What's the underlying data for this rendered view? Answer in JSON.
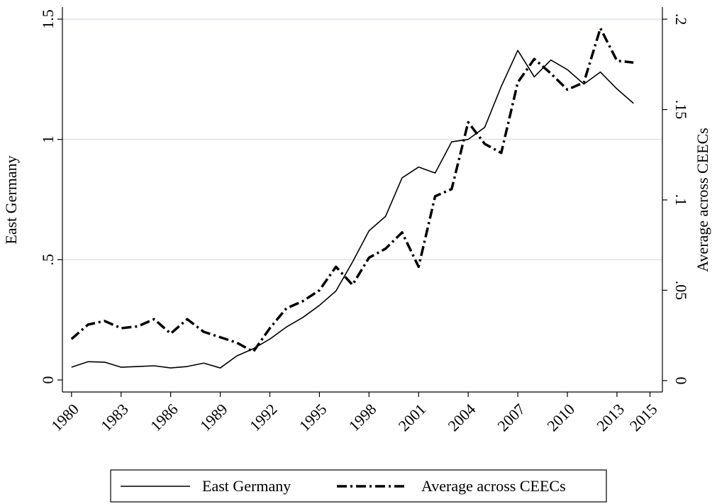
{
  "chart_data": {
    "type": "line",
    "x": [
      1980,
      1981,
      1982,
      1983,
      1984,
      1985,
      1986,
      1987,
      1988,
      1989,
      1990,
      1991,
      1992,
      1993,
      1994,
      1995,
      1996,
      1997,
      1998,
      1999,
      2000,
      2001,
      2002,
      2003,
      2004,
      2005,
      2006,
      2007,
      2008,
      2009,
      2010,
      2011,
      2012,
      2013,
      2014
    ],
    "series": [
      {
        "name": "East Germany",
        "color": "#000000",
        "dash": "solid",
        "values": [
          0.053,
          0.076,
          0.074,
          0.053,
          0.056,
          0.059,
          0.05,
          0.056,
          0.07,
          0.05,
          0.1,
          0.13,
          0.17,
          0.22,
          0.26,
          0.31,
          0.37,
          0.49,
          0.62,
          0.68,
          0.84,
          0.885,
          0.86,
          0.99,
          1.0,
          1.05,
          1.22,
          1.37,
          1.26,
          1.33,
          1.29,
          1.23,
          1.28,
          1.21,
          1.15
        ]
      },
      {
        "name": "Average across CEECs",
        "color": "#000000",
        "dash": "dashdot",
        "axis": "y2",
        "values": [
          0.023,
          0.031,
          0.033,
          0.029,
          0.03,
          0.034,
          0.026,
          0.034,
          0.027,
          0.024,
          0.021,
          0.016,
          0.029,
          0.04,
          0.044,
          0.05,
          0.063,
          0.053,
          0.068,
          0.073,
          0.082,
          0.063,
          0.102,
          0.106,
          0.143,
          0.131,
          0.126,
          0.165,
          0.178,
          0.17,
          0.161,
          0.165,
          0.195,
          0.177,
          0.176
        ]
      }
    ],
    "y_label": "East Germany",
    "y2_label": "Average across CEECs",
    "xlim": [
      1979.45,
      2015.75
    ],
    "xticks": [
      1980,
      1983,
      1986,
      1989,
      1992,
      1995,
      1998,
      2001,
      2004,
      2007,
      2010,
      2013,
      2015
    ],
    "ylim": [
      -0.05,
      1.55
    ],
    "yticks": [
      0,
      {
        "value": 0.5,
        "label": ".5"
      },
      1,
      1.5
    ],
    "y2lim": [
      -0.0063,
      0.2067
    ],
    "y2ticks": [
      0,
      {
        "value": 0.05,
        "label": ".05"
      },
      {
        "value": 0.1,
        "label": ".1"
      },
      {
        "value": 0.15,
        "label": ".15"
      },
      {
        "value": 0.2,
        "label": ".2"
      }
    ],
    "grid": true,
    "legend": "bottom"
  }
}
